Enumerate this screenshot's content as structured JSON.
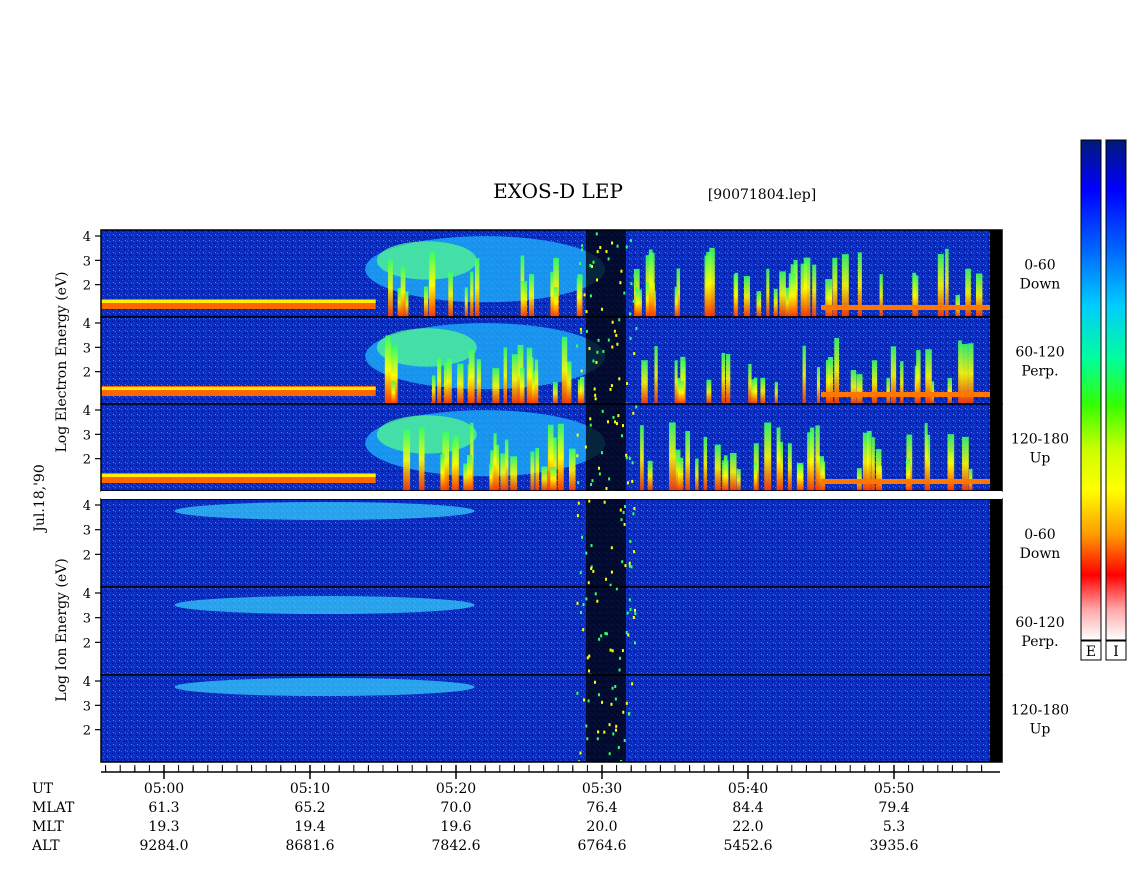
{
  "chart_data": {
    "type": "heatmap",
    "title": "EXOS-D LEP",
    "file_label": "[90071804.lep]",
    "date_label": "Jul.18,'90",
    "y_scale": "log",
    "y_ticks": [
      "4",
      "3",
      "2"
    ],
    "electron_axis_label": "Log   Electron  Energy (eV)",
    "ion_axis_label": "Log   Ion  Energy (eV)",
    "panels": [
      {
        "species": "electron",
        "range": "0-60",
        "direction": "Down"
      },
      {
        "species": "electron",
        "range": "60-120",
        "direction": "Perp."
      },
      {
        "species": "electron",
        "range": "120-180",
        "direction": "Up"
      },
      {
        "species": "ion",
        "range": "0-60",
        "direction": "Down"
      },
      {
        "species": "ion",
        "range": "60-120",
        "direction": "Perp."
      },
      {
        "species": "ion",
        "range": "120-180",
        "direction": "Up"
      }
    ],
    "colorbars": [
      {
        "label": "E",
        "colors": [
          "#001a7a",
          "#0000ff",
          "#0066ff",
          "#00ccff",
          "#00ff99",
          "#33ff00",
          "#ccff00",
          "#ffff00",
          "#ff9900",
          "#ff0000",
          "#ffaaaa",
          "#ffffff"
        ]
      },
      {
        "label": "I",
        "colors": [
          "#001a7a",
          "#0000ff",
          "#0066ff",
          "#00ccff",
          "#00ff99",
          "#33ff00",
          "#ccff00",
          "#ffff00",
          "#ff9900",
          "#ff0000",
          "#ffaaaa",
          "#ffffff"
        ]
      }
    ],
    "footer_rows": [
      {
        "label": "UT",
        "values": [
          "05:00",
          "05:10",
          "05:20",
          "05:30",
          "05:40",
          "05:50"
        ]
      },
      {
        "label": "MLAT",
        "values": [
          "61.3",
          "65.2",
          "70.0",
          "76.4",
          "84.4",
          "79.4"
        ]
      },
      {
        "label": "MLT",
        "values": [
          "19.3",
          "19.4",
          "19.6",
          "20.0",
          "22.0",
          "5.3"
        ]
      },
      {
        "label": "ALT",
        "values": [
          "9284.0",
          "8681.6",
          "7842.6",
          "6764.6",
          "5452.6",
          "3935.6"
        ]
      }
    ],
    "x_range": [
      "04:55",
      "05:56"
    ],
    "colors": {
      "background": "#0a2ab8",
      "frame": "#000000",
      "low_line": "#ffaa00"
    }
  }
}
